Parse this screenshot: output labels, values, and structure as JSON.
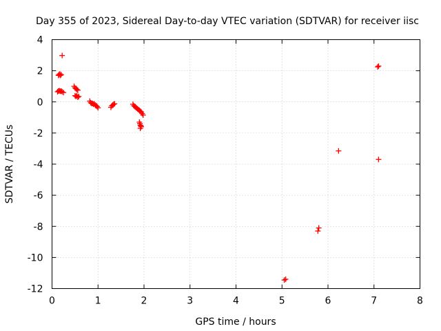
{
  "chart_data": {
    "type": "scatter",
    "title": "Day 355 of 2023, Sidereal Day-to-day VTEC variation (SDTVAR) for receiver iisc",
    "xlabel": "GPS time / hours",
    "ylabel": "SDTVAR / TECUs",
    "xlim": [
      0,
      8
    ],
    "ylim": [
      -12,
      4
    ],
    "xticks": [
      0,
      1,
      2,
      3,
      4,
      5,
      6,
      7,
      8
    ],
    "yticks": [
      -12,
      -10,
      -8,
      -6,
      -4,
      -2,
      0,
      2,
      4
    ],
    "grid": true,
    "marker": "+",
    "color": "#ff0000",
    "series": [
      {
        "name": "SDTVAR",
        "points": [
          [
            0.14,
            1.7
          ],
          [
            0.15,
            1.75
          ],
          [
            0.17,
            1.8
          ],
          [
            0.18,
            1.7
          ],
          [
            0.2,
            1.75
          ],
          [
            0.22,
            2.98
          ],
          [
            0.12,
            0.65
          ],
          [
            0.14,
            0.7
          ],
          [
            0.16,
            0.72
          ],
          [
            0.18,
            0.68
          ],
          [
            0.2,
            0.7
          ],
          [
            0.22,
            0.65
          ],
          [
            0.25,
            0.6
          ],
          [
            0.48,
            1.0
          ],
          [
            0.5,
            0.9
          ],
          [
            0.52,
            0.85
          ],
          [
            0.54,
            0.8
          ],
          [
            0.56,
            0.75
          ],
          [
            0.5,
            0.4
          ],
          [
            0.52,
            0.35
          ],
          [
            0.54,
            0.4
          ],
          [
            0.56,
            0.3
          ],
          [
            0.58,
            0.35
          ],
          [
            0.82,
            0.05
          ],
          [
            0.84,
            -0.05
          ],
          [
            0.86,
            -0.1
          ],
          [
            0.88,
            -0.1
          ],
          [
            0.9,
            -0.15
          ],
          [
            0.92,
            -0.12
          ],
          [
            0.94,
            -0.2
          ],
          [
            0.96,
            -0.25
          ],
          [
            0.98,
            -0.3
          ],
          [
            1.0,
            -0.38
          ],
          [
            1.28,
            -0.35
          ],
          [
            1.3,
            -0.25
          ],
          [
            1.32,
            -0.2
          ],
          [
            1.34,
            -0.15
          ],
          [
            1.36,
            -0.12
          ],
          [
            1.76,
            -0.15
          ],
          [
            1.78,
            -0.25
          ],
          [
            1.8,
            -0.3
          ],
          [
            1.82,
            -0.35
          ],
          [
            1.84,
            -0.4
          ],
          [
            1.86,
            -0.45
          ],
          [
            1.88,
            -0.5
          ],
          [
            1.9,
            -0.55
          ],
          [
            1.92,
            -0.6
          ],
          [
            1.94,
            -0.65
          ],
          [
            1.96,
            -0.75
          ],
          [
            1.98,
            -0.85
          ],
          [
            1.9,
            -1.3
          ],
          [
            1.91,
            -1.4
          ],
          [
            1.92,
            -1.5
          ],
          [
            1.93,
            -1.55
          ],
          [
            1.94,
            -1.6
          ],
          [
            1.92,
            -1.7
          ],
          [
            5.05,
            -11.45
          ],
          [
            5.08,
            -11.4
          ],
          [
            5.78,
            -8.3
          ],
          [
            5.8,
            -8.1
          ],
          [
            6.23,
            -3.15
          ],
          [
            7.08,
            2.25
          ],
          [
            7.1,
            2.3
          ],
          [
            7.1,
            -3.7
          ]
        ]
      }
    ]
  }
}
